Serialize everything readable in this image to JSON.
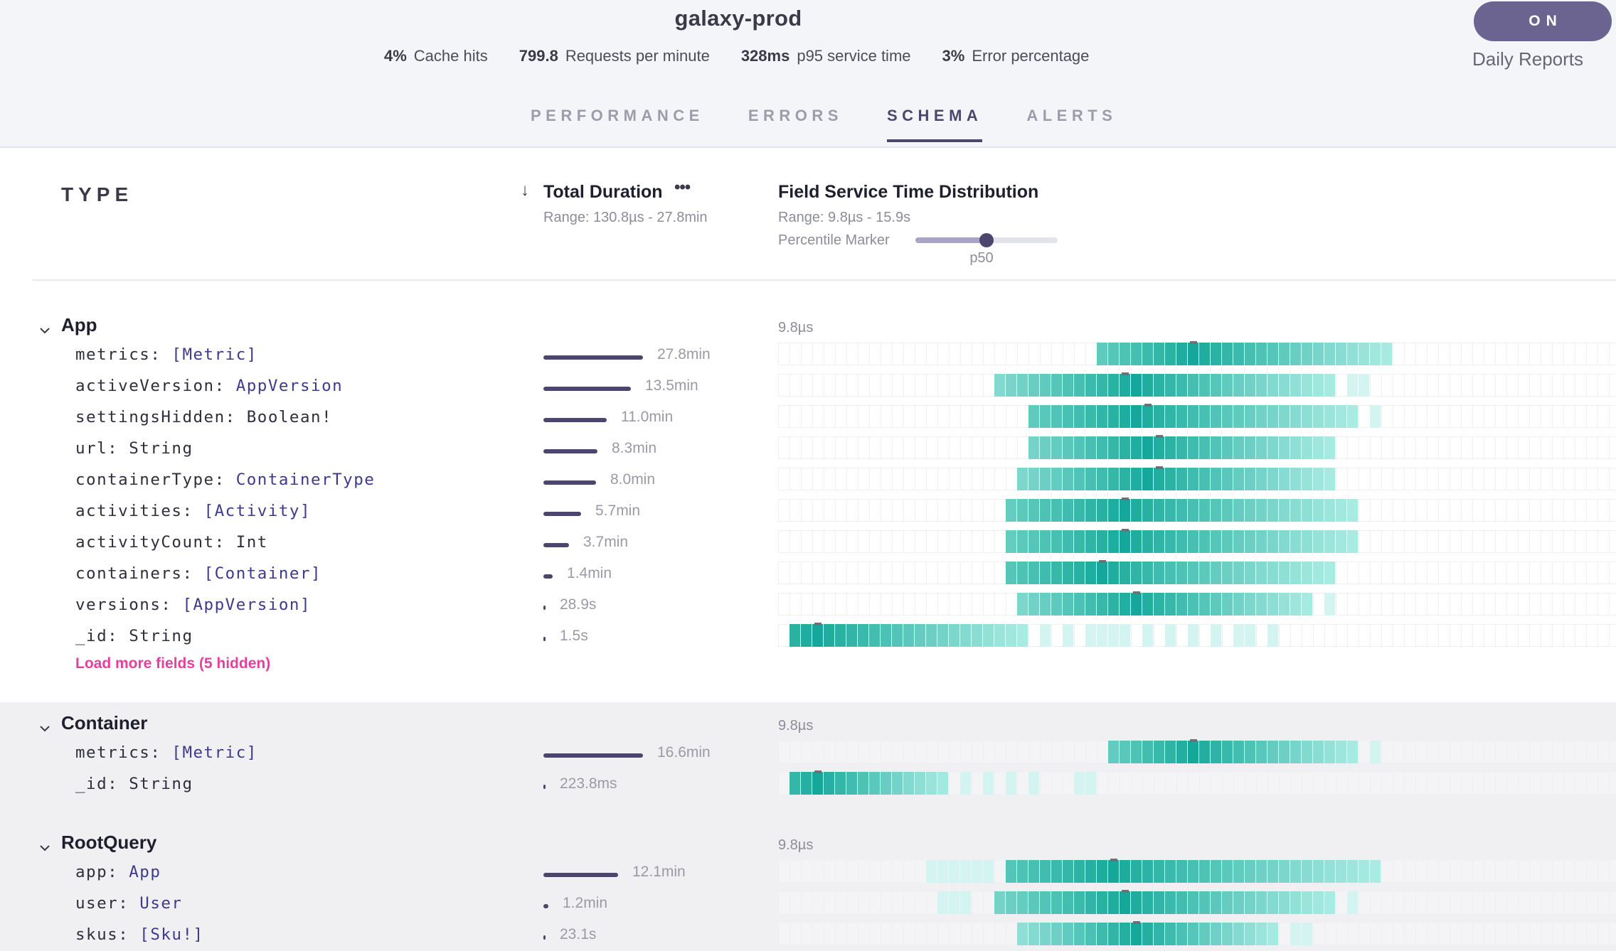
{
  "header": {
    "title": "galaxy-prod",
    "stats": [
      {
        "value": "4%",
        "label": "Cache hits"
      },
      {
        "value": "799.8",
        "label": "Requests per minute"
      },
      {
        "value": "328ms",
        "label": "p95 service time"
      },
      {
        "value": "3%",
        "label": "Error percentage"
      }
    ],
    "toggle": {
      "label": "ON",
      "caption": "Daily Reports"
    }
  },
  "tabs": [
    {
      "label": "PERFORMANCE",
      "active": false
    },
    {
      "label": "ERRORS",
      "active": false
    },
    {
      "label": "SCHEMA",
      "active": true
    },
    {
      "label": "ALERTS",
      "active": false
    }
  ],
  "columns": {
    "type_heading": "TYPE",
    "sort_arrow": "↓",
    "duration_title": "Total Duration",
    "duration_more": "•••",
    "duration_range": "Range: 130.8µs - 27.8min",
    "dist_title": "Field Service Time Distribution",
    "dist_range": "Range: 9.8µs - 15.9s",
    "percentile_label": "Percentile Marker",
    "percentile_value": "p50",
    "percentile_fraction": 0.5
  },
  "colors": {
    "accent": "#4c456e",
    "heat_dark": "#15a89a",
    "heat_light": "#bff2ec",
    "link_pink": "#e6409c",
    "type_purple": "#3d3a8c"
  },
  "groups": [
    {
      "name": "App",
      "shaded": false,
      "axis_label": "9.8µs",
      "load_more": "Load more fields (5 hidden)",
      "fields": [
        {
          "name": "metrics",
          "type": "[Metric]",
          "type_link": true,
          "duration": "27.8min",
          "fraction": 1.0,
          "cells": [
            [
              28,
              54,
              2
            ]
          ],
          "peak": 36,
          "marker": 36
        },
        {
          "name": "activeVersion",
          "type": "AppVersion",
          "type_link": true,
          "duration": "13.5min",
          "fraction": 0.878,
          "cells": [
            [
              19,
              49,
              2
            ],
            [
              50,
              52,
              1
            ]
          ],
          "peak": 31,
          "marker": 30
        },
        {
          "name": "settingsHidden",
          "type": "Boolean!",
          "type_link": false,
          "duration": "11.0min",
          "fraction": 0.638,
          "cells": [
            [
              22,
              51,
              2
            ],
            [
              52,
              53,
              1
            ]
          ],
          "peak": 31,
          "marker": 32
        },
        {
          "name": "url",
          "type": "String",
          "type_link": false,
          "duration": "8.3min",
          "fraction": 0.541,
          "cells": [
            [
              22,
              49,
              2
            ]
          ],
          "peak": 32,
          "marker": 33
        },
        {
          "name": "containerType",
          "type": "ContainerType",
          "type_link": true,
          "duration": "8.0min",
          "fraction": 0.527,
          "cells": [
            [
              21,
              49,
              2
            ]
          ],
          "peak": 32,
          "marker": 33
        },
        {
          "name": "activities",
          "type": "[Activity]",
          "type_link": true,
          "duration": "5.7min",
          "fraction": 0.38,
          "cells": [
            [
              20,
              51,
              2
            ]
          ],
          "peak": 30,
          "marker": 30
        },
        {
          "name": "activityCount",
          "type": "Int",
          "type_link": false,
          "duration": "3.7min",
          "fraction": 0.255,
          "cells": [
            [
              20,
              51,
              2
            ]
          ],
          "peak": 30,
          "marker": 30
        },
        {
          "name": "containers",
          "type": "[Container]",
          "type_link": true,
          "duration": "1.4min",
          "fraction": 0.09,
          "cells": [
            [
              20,
              49,
              2
            ]
          ],
          "peak": 28,
          "marker": 28
        },
        {
          "name": "versions",
          "type": "[AppVersion]",
          "type_link": true,
          "duration": "28.9s",
          "fraction": 0.02,
          "cells": [
            [
              21,
              47,
              2
            ],
            [
              48,
              49,
              1
            ]
          ],
          "peak": 31,
          "marker": 31
        },
        {
          "name": "_id",
          "type": "String",
          "type_link": false,
          "duration": "1.5s",
          "fraction": 0.01,
          "cells": [
            [
              1,
              22,
              2
            ],
            [
              23,
              24,
              1
            ],
            [
              25,
              26,
              1
            ],
            [
              27,
              31,
              1
            ],
            [
              32,
              33,
              1
            ],
            [
              34,
              35,
              1
            ],
            [
              36,
              37,
              1
            ],
            [
              38,
              39,
              1
            ],
            [
              40,
              42,
              1
            ],
            [
              43,
              44,
              1
            ]
          ],
          "peak": 3,
          "marker": 3
        }
      ]
    },
    {
      "name": "Container",
      "shaded": true,
      "axis_label": "9.8µs",
      "load_more": "",
      "fields": [
        {
          "name": "metrics",
          "type": "[Metric]",
          "type_link": true,
          "duration": "16.6min",
          "fraction": 1.0,
          "cells": [
            [
              29,
              51,
              2
            ],
            [
              52,
              53,
              1
            ]
          ],
          "peak": 36,
          "marker": 36
        },
        {
          "name": "_id",
          "type": "String",
          "type_link": false,
          "duration": "223.8ms",
          "fraction": 0.01,
          "cells": [
            [
              1,
              15,
              2
            ],
            [
              16,
              17,
              1
            ],
            [
              18,
              19,
              1
            ],
            [
              20,
              21,
              1
            ],
            [
              22,
              23,
              1
            ],
            [
              26,
              28,
              1
            ]
          ],
          "peak": 3,
          "marker": 3
        }
      ]
    },
    {
      "name": "RootQuery",
      "shaded": true,
      "axis_label": "9.8µs",
      "load_more": "",
      "fields": [
        {
          "name": "app",
          "type": "App",
          "type_link": true,
          "duration": "12.1min",
          "fraction": 0.75,
          "cells": [
            [
              13,
              19,
              1
            ],
            [
              20,
              53,
              2
            ]
          ],
          "peak": 29,
          "marker": 29
        },
        {
          "name": "user",
          "type": "User",
          "type_link": true,
          "duration": "1.2min",
          "fraction": 0.05,
          "cells": [
            [
              14,
              17,
              1
            ],
            [
              19,
              49,
              2
            ],
            [
              50,
              51,
              1
            ]
          ],
          "peak": 30,
          "marker": 30
        },
        {
          "name": "skus",
          "type": "[Sku!]",
          "type_link": true,
          "duration": "23.1s",
          "fraction": 0.01,
          "cells": [
            [
              21,
              44,
              2
            ],
            [
              45,
              47,
              1
            ]
          ],
          "peak": 31,
          "marker": 31
        }
      ]
    }
  ]
}
